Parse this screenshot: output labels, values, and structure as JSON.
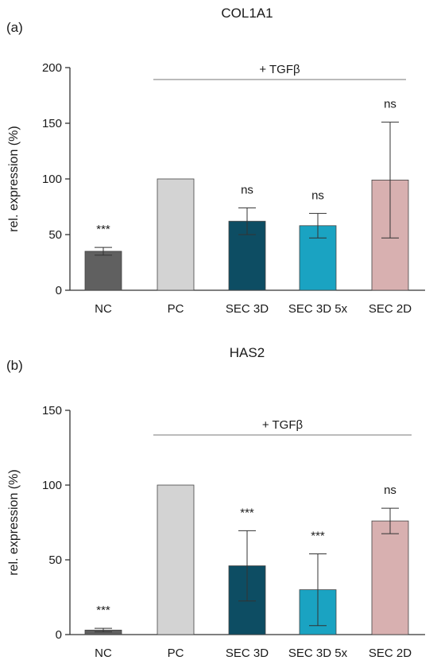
{
  "chart_data": [
    {
      "type": "bar",
      "panel_label": "(a)",
      "title": "COL1A1",
      "ylabel": "rel. expression (%)",
      "ylim": [
        0,
        200
      ],
      "yticks": [
        "0",
        "50",
        "100",
        "150",
        "200"
      ],
      "categories": [
        "NC",
        "PC",
        "SEC 3D",
        "SEC 3D 5x",
        "SEC 2D"
      ],
      "values": [
        35,
        100,
        62,
        58,
        99
      ],
      "errors": [
        3.5,
        0,
        12,
        11,
        52
      ],
      "significance": [
        "***",
        "",
        "ns",
        "ns",
        "ns"
      ],
      "colors": [
        "#606060",
        "#d3d3d3",
        "#0d4d63",
        "#1aa3c2",
        "#d8b0b0"
      ],
      "bracket_label": "+ TGFβ"
    },
    {
      "type": "bar",
      "panel_label": "(b)",
      "title": "HAS2",
      "ylabel": "rel. expression (%)",
      "ylim": [
        0,
        150
      ],
      "yticks": [
        "0",
        "50",
        "100",
        "150"
      ],
      "categories": [
        "NC",
        "PC",
        "SEC 3D",
        "SEC 3D 5x",
        "SEC 2D"
      ],
      "values": [
        3,
        100,
        46,
        30,
        76
      ],
      "errors": [
        1.2,
        0,
        23.5,
        24,
        8.5
      ],
      "significance": [
        "***",
        "",
        "***",
        "***",
        "ns"
      ],
      "colors": [
        "#606060",
        "#d3d3d3",
        "#0d4d63",
        "#1aa3c2",
        "#d8b0b0"
      ],
      "bracket_label": "+ TGFβ"
    }
  ]
}
